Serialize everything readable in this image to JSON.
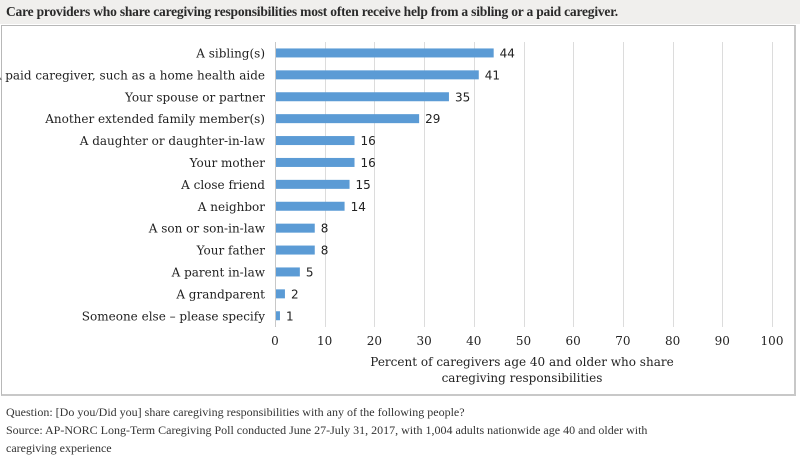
{
  "title": "Care providers who share caregiving responsibilities most often receive help from a sibling or a paid caregiver.",
  "chart_data": {
    "type": "bar",
    "orientation": "horizontal",
    "title": "Care providers who share caregiving responsibilities most often receive help from a sibling or a paid caregiver.",
    "categories": [
      "A sibling(s)",
      "A paid caregiver, such as a home health aide",
      "Your spouse or partner",
      "Another extended family member(s)",
      "A daughter or daughter-in-law",
      "Your mother",
      "A close friend",
      "A neighbor",
      "A son or son-in-law",
      "Your father",
      "A parent in-law",
      "A grandparent",
      "Someone else – please specify"
    ],
    "values": [
      44,
      41,
      35,
      29,
      16,
      16,
      15,
      14,
      8,
      8,
      5,
      2,
      1
    ],
    "xlabel_lines": [
      "Percent of caregivers age 40 and older who share",
      "caregiving responsibilities"
    ],
    "ylabel": "",
    "xlim": [
      0,
      100
    ],
    "xticks": [
      "0",
      "10",
      "20",
      "30",
      "40",
      "50",
      "60",
      "70",
      "80",
      "90",
      "100"
    ],
    "grid": true,
    "legend": "none",
    "bar_color": "#5b9bd5"
  },
  "notes": {
    "question": "Question: [Do you/Did you] share caregiving responsibilities with any of the following people?",
    "source_line1": "Source: AP-NORC Long-Term Caregiving Poll conducted June 27-July 31, 2017, with 1,004 adults nationwide age 40 and older with",
    "source_line2": "caregiving experience"
  }
}
